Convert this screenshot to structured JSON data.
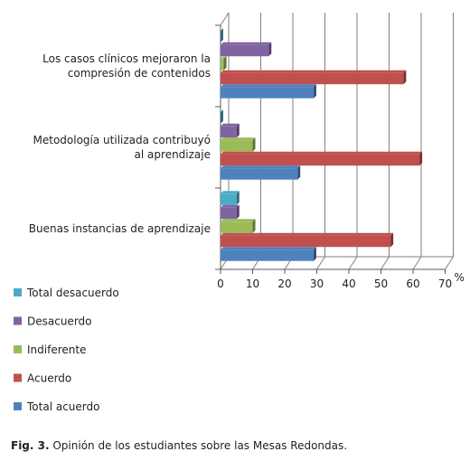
{
  "chart_data": {
    "type": "bar",
    "orientation": "horizontal",
    "style": "3d-clustered",
    "categories": [
      "Los casos clínicos mejoraron la compresión de contenidos",
      "Metodología utilizada contribuyó al aprendizaje",
      "Buenas instancias de aprendizaje"
    ],
    "category_lines": [
      [
        "Los casos clínicos mejoraron la",
        "compresión de contenidos"
      ],
      [
        "Metodología utilizada contribuyó",
        "al aprendizaje"
      ],
      [
        "Buenas instancias de aprendizaje"
      ]
    ],
    "series": [
      {
        "name": "Total desacuerdo",
        "color": "#4bacc6",
        "values": [
          0,
          0,
          5
        ]
      },
      {
        "name": "Desacuerdo",
        "color": "#8064a2",
        "values": [
          15,
          5,
          5
        ]
      },
      {
        "name": "Indiferente",
        "color": "#9bbb59",
        "values": [
          1,
          10,
          10
        ]
      },
      {
        "name": "Acuerdo",
        "color": "#c0504d",
        "values": [
          57,
          62,
          53
        ]
      },
      {
        "name": "Total acuerdo",
        "color": "#4f81bd",
        "values": [
          29,
          24,
          29
        ]
      }
    ],
    "xlim": [
      0,
      70
    ],
    "xticks": [
      "0",
      "10",
      "20",
      "30",
      "40",
      "50",
      "60",
      "70"
    ],
    "unit_label": "%",
    "grid": true,
    "legend_position": "bottom-left"
  },
  "caption": {
    "prefix": "Fig. 3.",
    "text": " Opinión de los estudiantes sobre las Mesas Redondas."
  }
}
